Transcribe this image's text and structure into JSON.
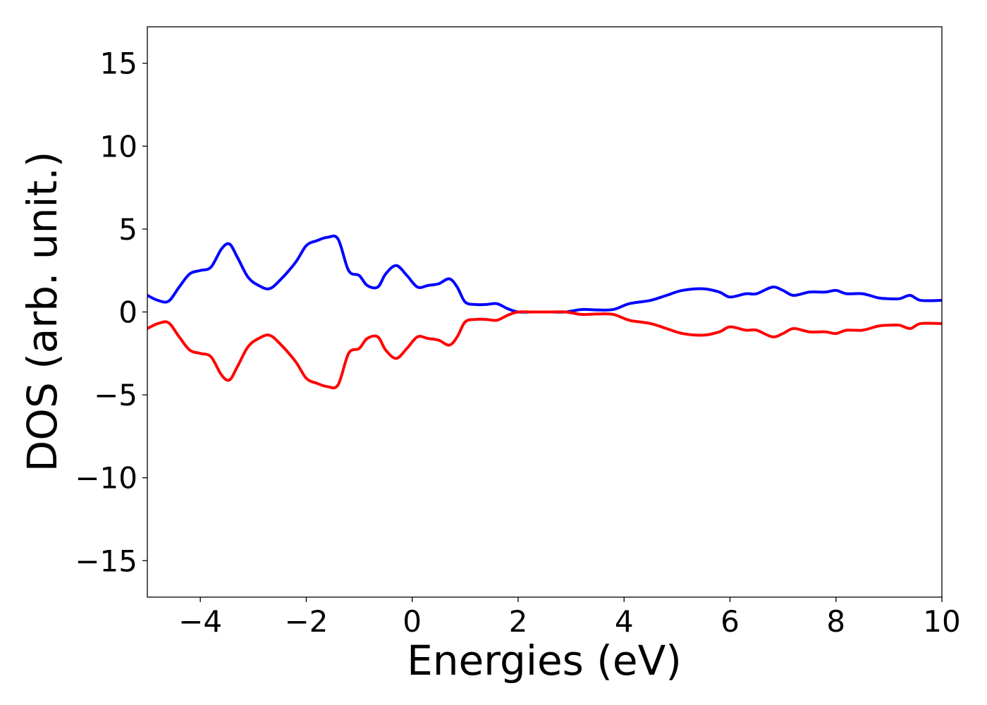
{
  "chart_data": {
    "type": "line",
    "title": "",
    "xlabel": "Energies (eV)",
    "ylabel": "DOS (arb. unit.)",
    "xlim": [
      -5,
      10
    ],
    "ylim": [
      -17.2,
      17.2
    ],
    "xticks": [
      -4,
      -2,
      0,
      2,
      4,
      6,
      8,
      10
    ],
    "xtick_labels": [
      "−4",
      "−2",
      "0",
      "2",
      "4",
      "6",
      "8",
      "10"
    ],
    "yticks": [
      15,
      10,
      5,
      0,
      -5,
      -10,
      -15
    ],
    "ytick_labels": [
      "15",
      "10",
      "5",
      "0",
      "−5",
      "−10",
      "−15"
    ],
    "grid": false,
    "legend": "none",
    "series": [
      {
        "color": "#0000ff",
        "x": [
          -5.0,
          -4.8,
          -4.6,
          -4.4,
          -4.2,
          -4.0,
          -3.8,
          -3.6,
          -3.45,
          -3.3,
          -3.1,
          -2.9,
          -2.7,
          -2.5,
          -2.2,
          -2.0,
          -1.8,
          -1.6,
          -1.4,
          -1.2,
          -1.0,
          -0.85,
          -0.65,
          -0.5,
          -0.3,
          -0.1,
          0.1,
          0.3,
          0.5,
          0.7,
          0.85,
          1.0,
          1.2,
          1.4,
          1.6,
          1.8,
          2.0,
          2.3,
          2.6,
          2.9,
          3.2,
          3.5,
          3.8,
          4.1,
          4.5,
          4.8,
          5.1,
          5.5,
          5.8,
          6.0,
          6.3,
          6.5,
          6.8,
          7.0,
          7.2,
          7.5,
          7.8,
          8.0,
          8.2,
          8.5,
          8.8,
          9.0,
          9.2,
          9.4,
          9.6,
          10.0
        ],
        "values": [
          1.0,
          0.7,
          0.65,
          1.5,
          2.3,
          2.5,
          2.7,
          3.8,
          4.1,
          3.3,
          2.1,
          1.6,
          1.4,
          1.9,
          3.0,
          4.0,
          4.3,
          4.5,
          4.4,
          2.5,
          2.2,
          1.6,
          1.5,
          2.3,
          2.8,
          2.2,
          1.5,
          1.6,
          1.7,
          2.0,
          1.5,
          0.6,
          0.45,
          0.45,
          0.5,
          0.2,
          0.0,
          0.0,
          0.0,
          0.0,
          0.15,
          0.12,
          0.15,
          0.5,
          0.7,
          1.0,
          1.3,
          1.4,
          1.2,
          0.9,
          1.1,
          1.1,
          1.5,
          1.3,
          1.0,
          1.2,
          1.2,
          1.3,
          1.1,
          1.1,
          0.85,
          0.8,
          0.8,
          1.0,
          0.7,
          0.7
        ]
      },
      {
        "color": "#ff0000",
        "x": [
          -5.0,
          -4.8,
          -4.6,
          -4.4,
          -4.2,
          -4.0,
          -3.8,
          -3.6,
          -3.45,
          -3.3,
          -3.1,
          -2.9,
          -2.7,
          -2.5,
          -2.2,
          -2.0,
          -1.8,
          -1.6,
          -1.4,
          -1.2,
          -1.0,
          -0.85,
          -0.65,
          -0.5,
          -0.3,
          -0.1,
          0.1,
          0.3,
          0.5,
          0.7,
          0.85,
          1.0,
          1.2,
          1.4,
          1.6,
          1.8,
          2.0,
          2.3,
          2.6,
          2.9,
          3.2,
          3.5,
          3.8,
          4.1,
          4.5,
          4.8,
          5.1,
          5.5,
          5.8,
          6.0,
          6.3,
          6.5,
          6.8,
          7.0,
          7.2,
          7.5,
          7.8,
          8.0,
          8.2,
          8.5,
          8.8,
          9.0,
          9.2,
          9.4,
          9.6,
          10.0
        ],
        "values": [
          -1.0,
          -0.7,
          -0.65,
          -1.5,
          -2.3,
          -2.5,
          -2.7,
          -3.8,
          -4.1,
          -3.3,
          -2.1,
          -1.6,
          -1.4,
          -1.9,
          -3.0,
          -4.0,
          -4.3,
          -4.5,
          -4.4,
          -2.5,
          -2.2,
          -1.6,
          -1.5,
          -2.3,
          -2.8,
          -2.2,
          -1.5,
          -1.6,
          -1.7,
          -2.0,
          -1.5,
          -0.6,
          -0.45,
          -0.45,
          -0.5,
          -0.2,
          0.0,
          0.0,
          0.0,
          0.0,
          -0.15,
          -0.12,
          -0.15,
          -0.5,
          -0.7,
          -1.0,
          -1.3,
          -1.4,
          -1.2,
          -0.9,
          -1.1,
          -1.1,
          -1.5,
          -1.3,
          -1.0,
          -1.2,
          -1.2,
          -1.3,
          -1.1,
          -1.1,
          -0.85,
          -0.8,
          -0.8,
          -1.0,
          -0.7,
          -0.7
        ]
      }
    ]
  }
}
